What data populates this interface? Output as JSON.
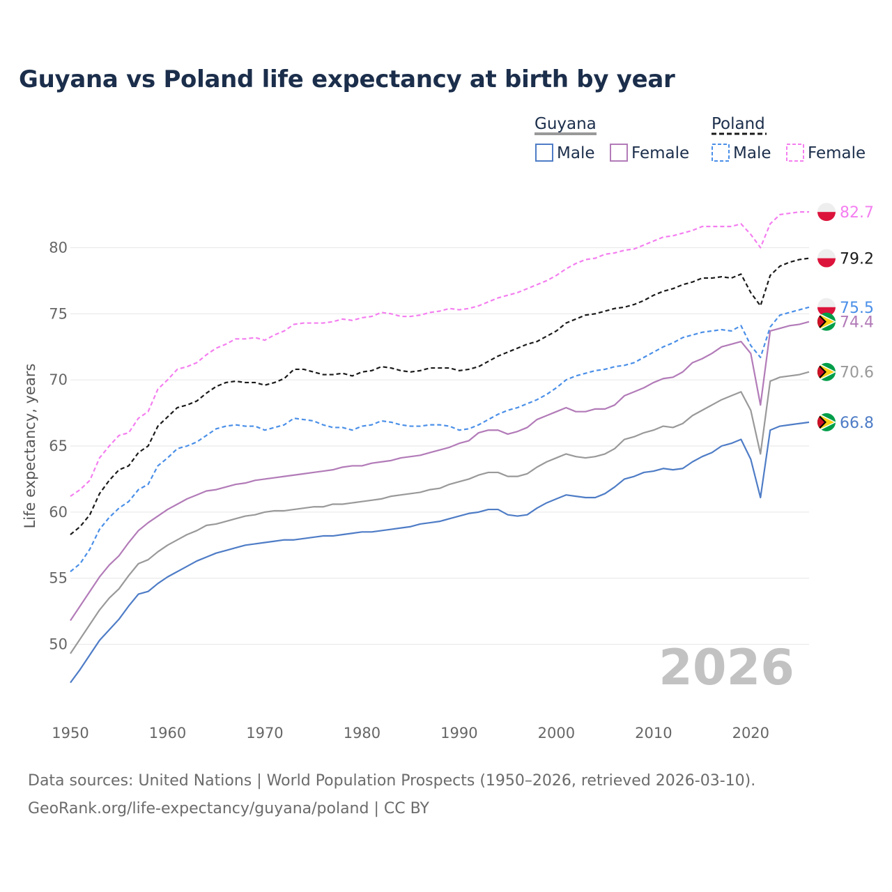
{
  "title": "Guyana vs Poland life expectancy at birth by year",
  "sources": {
    "line1": "Data sources: United Nations | World Population Prospects (1950–2026, retrieved 2026-03-10).",
    "line2": "GeoRank.org/life-expectancy/guyana/poland | CC BY"
  },
  "colors": {
    "guyana_male": "#4e7cc6",
    "guyana_female": "#b27bb8",
    "guyana_total": "#999999",
    "poland_male": "#4a8fe8",
    "poland_female": "#f47ef0",
    "poland_total": "#1a1a1a"
  },
  "chart_data": {
    "type": "line",
    "title": "Guyana vs Poland life expectancy at birth by year",
    "xlabel": "",
    "ylabel": "Life expectancy, years",
    "xlim": [
      1950,
      2026
    ],
    "ylim": [
      45.5,
      84.5
    ],
    "xticks": [
      1950,
      1960,
      1970,
      1980,
      1990,
      2000,
      2010,
      2020
    ],
    "yticks": [
      50,
      55,
      60,
      65,
      70,
      75,
      80
    ],
    "grid": true,
    "current_year": "2026",
    "legend": {
      "groups": [
        {
          "name": "Guyana",
          "style": "solid",
          "entries": [
            "Male",
            "Female"
          ]
        },
        {
          "name": "Poland",
          "style": "dashed",
          "entries": [
            "Male",
            "Female"
          ]
        }
      ]
    },
    "x": [
      1950,
      1951,
      1952,
      1953,
      1954,
      1955,
      1956,
      1957,
      1958,
      1959,
      1960,
      1961,
      1962,
      1963,
      1964,
      1965,
      1966,
      1967,
      1968,
      1969,
      1970,
      1971,
      1972,
      1973,
      1974,
      1975,
      1976,
      1977,
      1978,
      1979,
      1980,
      1981,
      1982,
      1983,
      1984,
      1985,
      1986,
      1987,
      1988,
      1989,
      1990,
      1991,
      1992,
      1993,
      1994,
      1995,
      1996,
      1997,
      1998,
      1999,
      2000,
      2001,
      2002,
      2003,
      2004,
      2005,
      2006,
      2007,
      2008,
      2009,
      2010,
      2011,
      2012,
      2013,
      2014,
      2015,
      2016,
      2017,
      2018,
      2019,
      2020,
      2021,
      2022,
      2023,
      2024,
      2025,
      2026
    ],
    "series": [
      {
        "name": "Poland Female",
        "country": "Poland",
        "sex": "Female",
        "key": "poland_female",
        "dashed": true,
        "end_label": "82.7",
        "values": [
          61.2,
          61.7,
          62.4,
          64.1,
          65.0,
          65.8,
          66.0,
          67.1,
          67.6,
          69.3,
          70.0,
          70.8,
          71.0,
          71.3,
          71.9,
          72.4,
          72.7,
          73.1,
          73.1,
          73.2,
          73.0,
          73.4,
          73.7,
          74.2,
          74.3,
          74.3,
          74.3,
          74.4,
          74.6,
          74.5,
          74.7,
          74.8,
          75.1,
          75.0,
          74.8,
          74.8,
          74.9,
          75.1,
          75.2,
          75.4,
          75.3,
          75.4,
          75.6,
          75.9,
          76.2,
          76.4,
          76.6,
          76.9,
          77.2,
          77.5,
          77.9,
          78.4,
          78.8,
          79.1,
          79.2,
          79.5,
          79.6,
          79.8,
          79.9,
          80.2,
          80.5,
          80.8,
          80.9,
          81.1,
          81.3,
          81.6,
          81.6,
          81.6,
          81.6,
          81.8,
          81.0,
          80.0,
          81.8,
          82.5,
          82.6,
          82.7,
          82.7
        ]
      },
      {
        "name": "Poland Total",
        "country": "Poland",
        "sex": "Total",
        "key": "poland_total",
        "dashed": true,
        "end_label": "79.2",
        "values": [
          58.3,
          58.9,
          59.8,
          61.4,
          62.4,
          63.2,
          63.5,
          64.5,
          65.0,
          66.5,
          67.2,
          67.9,
          68.1,
          68.4,
          69.0,
          69.5,
          69.8,
          69.9,
          69.8,
          69.8,
          69.6,
          69.8,
          70.1,
          70.8,
          70.8,
          70.6,
          70.4,
          70.4,
          70.5,
          70.3,
          70.6,
          70.7,
          71.0,
          70.9,
          70.7,
          70.6,
          70.7,
          70.9,
          70.9,
          70.9,
          70.7,
          70.8,
          71.0,
          71.4,
          71.8,
          72.1,
          72.4,
          72.7,
          72.9,
          73.3,
          73.7,
          74.3,
          74.6,
          74.9,
          75.0,
          75.2,
          75.4,
          75.5,
          75.7,
          76.0,
          76.4,
          76.7,
          76.9,
          77.2,
          77.4,
          77.7,
          77.7,
          77.8,
          77.7,
          78.0,
          76.6,
          75.6,
          77.9,
          78.6,
          78.9,
          79.1,
          79.2
        ]
      },
      {
        "name": "Poland Male",
        "country": "Poland",
        "sex": "Male",
        "key": "poland_male",
        "dashed": true,
        "end_label": "75.5",
        "values": [
          55.5,
          56.1,
          57.2,
          58.7,
          59.6,
          60.3,
          60.8,
          61.7,
          62.1,
          63.5,
          64.1,
          64.8,
          65.0,
          65.3,
          65.8,
          66.3,
          66.5,
          66.6,
          66.5,
          66.5,
          66.2,
          66.4,
          66.6,
          67.1,
          67.0,
          66.9,
          66.6,
          66.4,
          66.4,
          66.2,
          66.5,
          66.6,
          66.9,
          66.8,
          66.6,
          66.5,
          66.5,
          66.6,
          66.6,
          66.5,
          66.2,
          66.3,
          66.6,
          67.0,
          67.4,
          67.7,
          67.9,
          68.2,
          68.5,
          68.9,
          69.4,
          70.0,
          70.3,
          70.5,
          70.7,
          70.8,
          71.0,
          71.1,
          71.3,
          71.7,
          72.1,
          72.5,
          72.8,
          73.2,
          73.4,
          73.6,
          73.7,
          73.8,
          73.7,
          74.1,
          72.6,
          71.7,
          74.0,
          74.9,
          75.1,
          75.3,
          75.5
        ]
      },
      {
        "name": "Guyana Female",
        "country": "Guyana",
        "sex": "Female",
        "key": "guyana_female",
        "dashed": false,
        "end_label": "74.4",
        "values": [
          51.8,
          52.9,
          54.0,
          55.1,
          56.0,
          56.7,
          57.7,
          58.6,
          59.2,
          59.7,
          60.2,
          60.6,
          61.0,
          61.3,
          61.6,
          61.7,
          61.9,
          62.1,
          62.2,
          62.4,
          62.5,
          62.6,
          62.7,
          62.8,
          62.9,
          63.0,
          63.1,
          63.2,
          63.4,
          63.5,
          63.5,
          63.7,
          63.8,
          63.9,
          64.1,
          64.2,
          64.3,
          64.5,
          64.7,
          64.9,
          65.2,
          65.4,
          66.0,
          66.2,
          66.2,
          65.9,
          66.1,
          66.4,
          67.0,
          67.3,
          67.6,
          67.9,
          67.6,
          67.6,
          67.8,
          67.8,
          68.1,
          68.8,
          69.1,
          69.4,
          69.8,
          70.1,
          70.2,
          70.6,
          71.3,
          71.6,
          72.0,
          72.5,
          72.7,
          72.9,
          72.0,
          68.1,
          73.7,
          73.9,
          74.1,
          74.2,
          74.4
        ]
      },
      {
        "name": "Guyana Total",
        "country": "Guyana",
        "sex": "Total",
        "key": "guyana_total",
        "dashed": false,
        "end_label": "70.6",
        "values": [
          49.3,
          50.4,
          51.5,
          52.6,
          53.5,
          54.2,
          55.2,
          56.1,
          56.4,
          57.0,
          57.5,
          57.9,
          58.3,
          58.6,
          59.0,
          59.1,
          59.3,
          59.5,
          59.7,
          59.8,
          60.0,
          60.1,
          60.1,
          60.2,
          60.3,
          60.4,
          60.4,
          60.6,
          60.6,
          60.7,
          60.8,
          60.9,
          61.0,
          61.2,
          61.3,
          61.4,
          61.5,
          61.7,
          61.8,
          62.1,
          62.3,
          62.5,
          62.8,
          63.0,
          63.0,
          62.7,
          62.7,
          62.9,
          63.4,
          63.8,
          64.1,
          64.4,
          64.2,
          64.1,
          64.2,
          64.4,
          64.8,
          65.5,
          65.7,
          66.0,
          66.2,
          66.5,
          66.4,
          66.7,
          67.3,
          67.7,
          68.1,
          68.5,
          68.8,
          69.1,
          67.7,
          64.4,
          69.9,
          70.2,
          70.3,
          70.4,
          70.6
        ]
      },
      {
        "name": "Guyana Male",
        "country": "Guyana",
        "sex": "Male",
        "key": "guyana_male",
        "dashed": false,
        "end_label": "66.8",
        "values": [
          47.1,
          48.1,
          49.2,
          50.3,
          51.1,
          51.9,
          52.9,
          53.8,
          54.0,
          54.6,
          55.1,
          55.5,
          55.9,
          56.3,
          56.6,
          56.9,
          57.1,
          57.3,
          57.5,
          57.6,
          57.7,
          57.8,
          57.9,
          57.9,
          58.0,
          58.1,
          58.2,
          58.2,
          58.3,
          58.4,
          58.5,
          58.5,
          58.6,
          58.7,
          58.8,
          58.9,
          59.1,
          59.2,
          59.3,
          59.5,
          59.7,
          59.9,
          60.0,
          60.2,
          60.2,
          59.8,
          59.7,
          59.8,
          60.3,
          60.7,
          61.0,
          61.3,
          61.2,
          61.1,
          61.1,
          61.4,
          61.9,
          62.5,
          62.7,
          63.0,
          63.1,
          63.3,
          63.2,
          63.3,
          63.8,
          64.2,
          64.5,
          65.0,
          65.2,
          65.5,
          64.0,
          61.1,
          66.2,
          66.5,
          66.6,
          66.7,
          66.8
        ]
      }
    ]
  }
}
